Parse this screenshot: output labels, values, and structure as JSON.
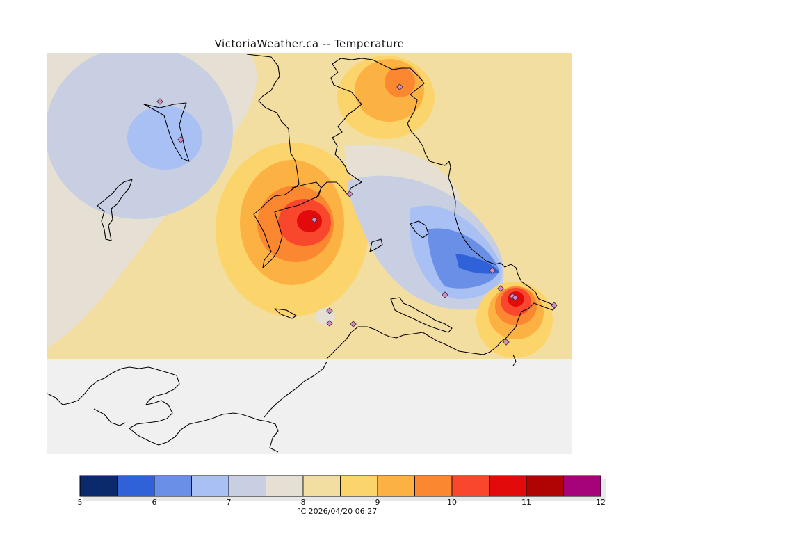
{
  "title": "VictoriaWeather.ca -- Temperature",
  "colorbar": {
    "ticks": [
      "5",
      "6",
      "7",
      "8",
      "9",
      "10",
      "11",
      "12"
    ],
    "caption": "°C  2026/04/20 06:27",
    "colors": [
      "#0b2a6b",
      "#2f62d8",
      "#6a8fe6",
      "#a9c0f4",
      "#c9cfe2",
      "#e6e0d4",
      "#f3dea2",
      "#fcd46c",
      "#fbb243",
      "#fc8731",
      "#f9472d",
      "#e20a0a",
      "#b00404",
      "#a6037a"
    ]
  },
  "map": {
    "land_color": "#f0f0f0",
    "station_marker_color": "#d987c9"
  }
}
